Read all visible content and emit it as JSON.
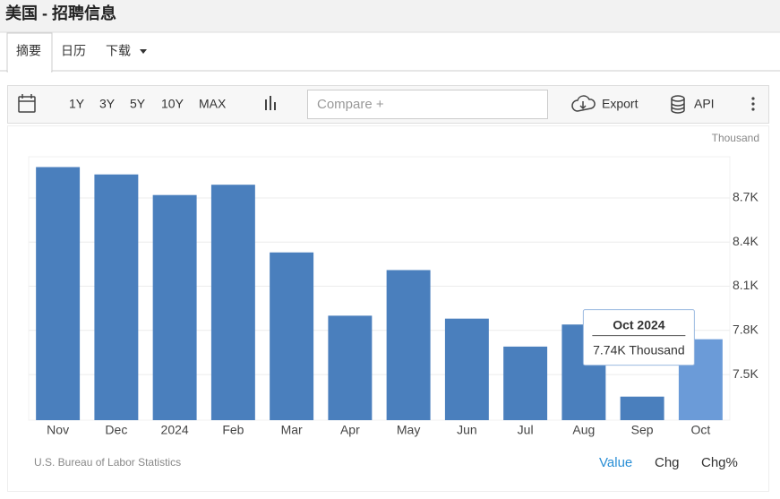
{
  "header": {
    "title": "美国 - 招聘信息"
  },
  "tabs": [
    "摘要",
    "日历",
    "下载"
  ],
  "toolbar": {
    "ranges": [
      "1Y",
      "3Y",
      "5Y",
      "10Y",
      "MAX"
    ],
    "compare": "Compare +",
    "export": "Export",
    "api": "API"
  },
  "chart_data": {
    "type": "bar",
    "unit": "Thousand",
    "categories": [
      "Nov",
      "Dec",
      "2024",
      "Feb",
      "Mar",
      "Apr",
      "May",
      "Jun",
      "Jul",
      "Aug",
      "Sep",
      "Oct"
    ],
    "values": [
      8.91,
      8.86,
      8.72,
      8.79,
      8.33,
      7.9,
      8.21,
      7.88,
      7.69,
      7.84,
      7.35,
      7.74
    ],
    "value_labels": [
      null,
      null,
      null,
      null,
      null,
      null,
      null,
      null,
      null,
      null,
      null,
      "7.74K Thousand"
    ],
    "tooltip_title": "Oct 2024",
    "colors": [
      "#4a7fbd",
      "#4a7fbd",
      "#4a7fbd",
      "#4a7fbd",
      "#4a7fbd",
      "#4a7fbd",
      "#4a7fbd",
      "#4a7fbd",
      "#4a7fbd",
      "#4a7fbd",
      "#4a7fbd",
      "#6b9bd8"
    ],
    "ylim": [
      7.19,
      8.98
    ],
    "yticks": [
      {
        "value": 7.5,
        "label": "7.5K"
      },
      {
        "value": 7.8,
        "label": "7.8K"
      },
      {
        "value": 8.1,
        "label": "8.1K"
      },
      {
        "value": 8.4,
        "label": "8.4K"
      },
      {
        "value": 8.7,
        "label": "8.7K"
      }
    ],
    "grid": true,
    "source": "U.S. Bureau of Labor Statistics"
  },
  "view_options": [
    "Value",
    "Chg",
    "Chg%"
  ]
}
